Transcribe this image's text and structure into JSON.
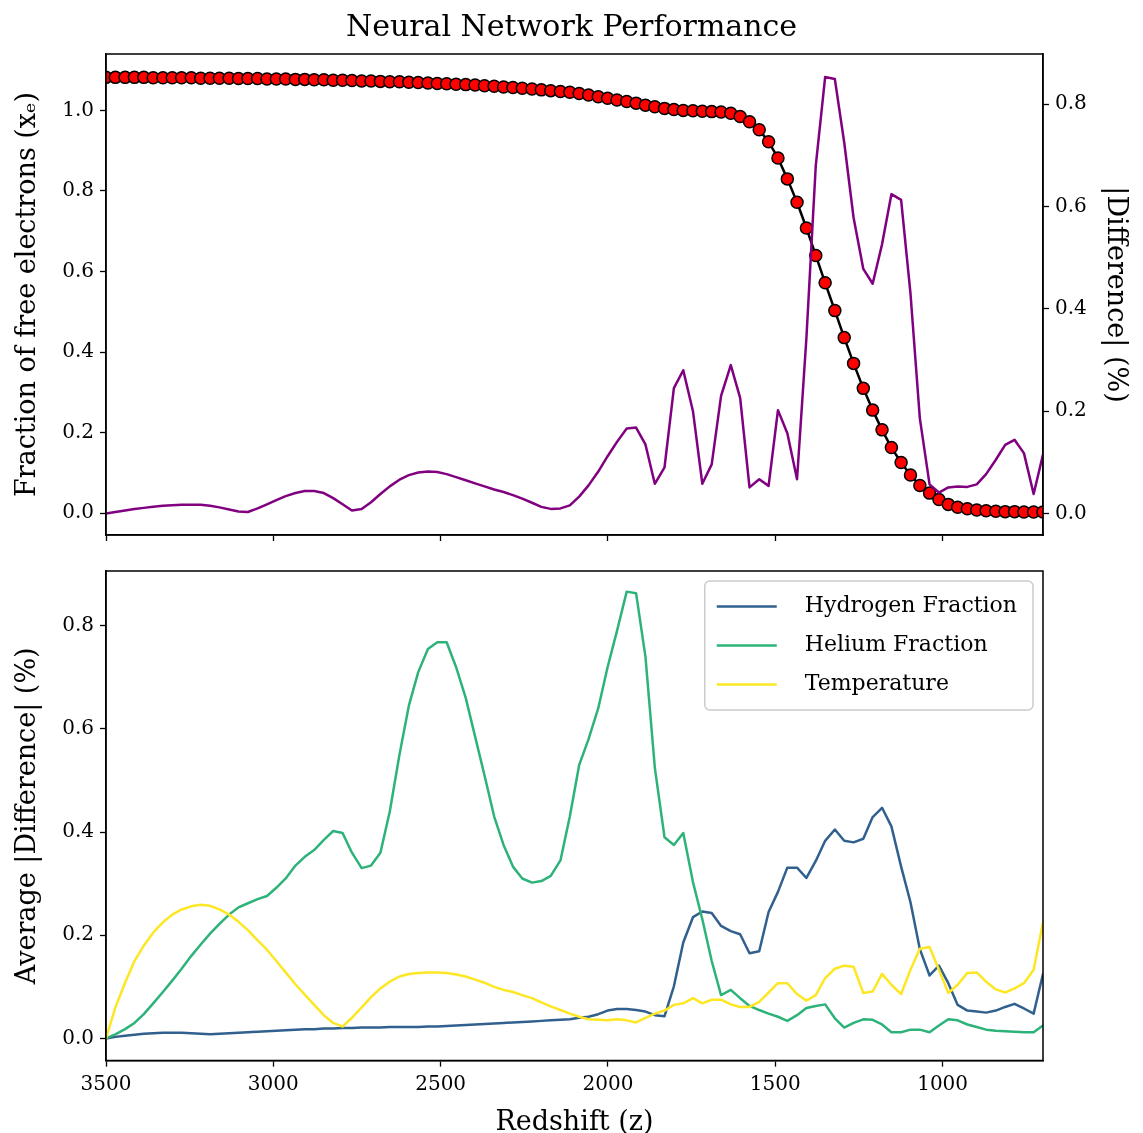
{
  "chart_data": [
    {
      "type": "line",
      "title": "Neural Network Performance",
      "ylabel": "Fraction of free electrons (xₑ)",
      "y2label": "|Difference| (%)",
      "x": [
        3500,
        3472,
        3443,
        3415,
        3387,
        3359,
        3330,
        3302,
        3274,
        3245,
        3217,
        3189,
        3161,
        3132,
        3104,
        3076,
        3047,
        3019,
        2991,
        2963,
        2934,
        2906,
        2878,
        2849,
        2821,
        2793,
        2765,
        2736,
        2708,
        2680,
        2652,
        2623,
        2595,
        2567,
        2538,
        2510,
        2482,
        2454,
        2425,
        2397,
        2369,
        2340,
        2312,
        2284,
        2256,
        2227,
        2199,
        2171,
        2142,
        2114,
        2086,
        2058,
        2029,
        2001,
        1973,
        1944,
        1916,
        1888,
        1860,
        1831,
        1803,
        1775,
        1746,
        1718,
        1690,
        1662,
        1633,
        1605,
        1577,
        1548,
        1520,
        1492,
        1464,
        1435,
        1407,
        1379,
        1351,
        1322,
        1294,
        1266,
        1237,
        1209,
        1181,
        1153,
        1124,
        1096,
        1068,
        1039,
        1011,
        983,
        955,
        926,
        898,
        870,
        841,
        813,
        785,
        757,
        728,
        700
      ],
      "series": [
        {
          "type": "line",
          "color": "#000000",
          "values": [
            1.082,
            1.082,
            1.082,
            1.082,
            1.082,
            1.081,
            1.081,
            1.081,
            1.081,
            1.081,
            1.08,
            1.08,
            1.08,
            1.08,
            1.079,
            1.079,
            1.079,
            1.078,
            1.078,
            1.078,
            1.077,
            1.077,
            1.076,
            1.076,
            1.075,
            1.075,
            1.074,
            1.073,
            1.073,
            1.072,
            1.071,
            1.071,
            1.07,
            1.069,
            1.068,
            1.067,
            1.066,
            1.065,
            1.064,
            1.063,
            1.061,
            1.06,
            1.058,
            1.057,
            1.055,
            1.053,
            1.051,
            1.049,
            1.047,
            1.045,
            1.042,
            1.038,
            1.034,
            1.03,
            1.026,
            1.022,
            1.018,
            1.013,
            1.009,
            1.005,
            1.002,
            1.0,
            0.999,
            0.998,
            0.997,
            0.996,
            0.993,
            0.985,
            0.972,
            0.952,
            0.922,
            0.882,
            0.83,
            0.772,
            0.708,
            0.64,
            0.572,
            0.503,
            0.436,
            0.372,
            0.31,
            0.256,
            0.207,
            0.163,
            0.126,
            0.095,
            0.069,
            0.05,
            0.034,
            0.022,
            0.015,
            0.011,
            0.008,
            0.006,
            0.005,
            0.004,
            0.004,
            0.003,
            0.003,
            0.003
          ]
        },
        {
          "type": "scatter",
          "color": "#ff0000",
          "marker": "circle",
          "values": [
            1.082,
            1.082,
            1.082,
            1.082,
            1.082,
            1.081,
            1.081,
            1.081,
            1.081,
            1.081,
            1.08,
            1.08,
            1.08,
            1.08,
            1.079,
            1.079,
            1.079,
            1.078,
            1.078,
            1.078,
            1.077,
            1.077,
            1.076,
            1.076,
            1.075,
            1.075,
            1.074,
            1.073,
            1.073,
            1.072,
            1.071,
            1.071,
            1.07,
            1.069,
            1.068,
            1.067,
            1.066,
            1.065,
            1.064,
            1.063,
            1.061,
            1.06,
            1.058,
            1.057,
            1.055,
            1.053,
            1.051,
            1.049,
            1.047,
            1.045,
            1.042,
            1.038,
            1.034,
            1.03,
            1.026,
            1.022,
            1.018,
            1.013,
            1.009,
            1.005,
            1.002,
            1.0,
            0.999,
            0.998,
            0.997,
            0.996,
            0.993,
            0.985,
            0.972,
            0.952,
            0.922,
            0.882,
            0.83,
            0.772,
            0.708,
            0.64,
            0.572,
            0.503,
            0.436,
            0.372,
            0.31,
            0.256,
            0.207,
            0.163,
            0.126,
            0.095,
            0.069,
            0.05,
            0.034,
            0.022,
            0.015,
            0.011,
            0.008,
            0.006,
            0.005,
            0.004,
            0.004,
            0.003,
            0.003,
            0.003
          ]
        },
        {
          "type": "line",
          "axis": "y2",
          "color": "#800080",
          "values": [
            0.0,
            0.003,
            0.006,
            0.009,
            0.011,
            0.013,
            0.015,
            0.016,
            0.017,
            0.017,
            0.017,
            0.015,
            0.012,
            0.008,
            0.004,
            0.003,
            0.01,
            0.018,
            0.026,
            0.034,
            0.04,
            0.044,
            0.044,
            0.04,
            0.03,
            0.018,
            0.006,
            0.009,
            0.022,
            0.038,
            0.053,
            0.066,
            0.075,
            0.08,
            0.082,
            0.081,
            0.077,
            0.071,
            0.065,
            0.059,
            0.053,
            0.047,
            0.042,
            0.036,
            0.029,
            0.021,
            0.013,
            0.009,
            0.01,
            0.016,
            0.033,
            0.055,
            0.082,
            0.112,
            0.14,
            0.166,
            0.168,
            0.135,
            0.058,
            0.09,
            0.245,
            0.28,
            0.2,
            0.058,
            0.096,
            0.23,
            0.29,
            0.226,
            0.051,
            0.067,
            0.054,
            0.202,
            0.157,
            0.067,
            0.343,
            0.68,
            0.853,
            0.849,
            0.725,
            0.578,
            0.478,
            0.449,
            0.526,
            0.624,
            0.613,
            0.43,
            0.186,
            0.057,
            0.041,
            0.051,
            0.053,
            0.052,
            0.057,
            0.077,
            0.105,
            0.134,
            0.144,
            0.118,
            0.038,
            0.115
          ]
        }
      ],
      "xlim": [
        3500,
        700
      ],
      "xticks": [
        3500,
        3000,
        2500,
        2000,
        1500,
        1000
      ],
      "ylim": [
        -0.054,
        1.14
      ],
      "yticks": [
        {
          "value": 0,
          "label": "0.0"
        },
        {
          "value": 0.2,
          "label": "0.2"
        },
        {
          "value": 0.4,
          "label": "0.4"
        },
        {
          "value": 0.6,
          "label": "0.6"
        },
        {
          "value": 0.8,
          "label": "0.8"
        },
        {
          "value": 1.0,
          "label": "1.0"
        }
      ],
      "y2lim": [
        -0.042,
        0.898
      ],
      "y2ticks": [
        {
          "value": 0,
          "label": "0.0"
        },
        {
          "value": 0.2,
          "label": "0.2"
        },
        {
          "value": 0.4,
          "label": "0.4"
        },
        {
          "value": 0.6,
          "label": "0.6"
        },
        {
          "value": 0.8,
          "label": "0.8"
        }
      ],
      "tick_labels": "y",
      "grid": false,
      "legend": false
    },
    {
      "type": "line",
      "xlabel": "Redshift (z)",
      "ylabel": "Average |Difference| (%)",
      "x": [
        3500,
        3472,
        3443,
        3415,
        3387,
        3359,
        3330,
        3302,
        3274,
        3245,
        3217,
        3189,
        3161,
        3132,
        3104,
        3076,
        3047,
        3019,
        2991,
        2963,
        2934,
        2906,
        2878,
        2849,
        2821,
        2793,
        2765,
        2736,
        2708,
        2680,
        2652,
        2623,
        2595,
        2567,
        2538,
        2510,
        2482,
        2454,
        2425,
        2397,
        2369,
        2340,
        2312,
        2284,
        2256,
        2227,
        2199,
        2171,
        2142,
        2114,
        2086,
        2058,
        2029,
        2001,
        1973,
        1944,
        1916,
        1888,
        1860,
        1831,
        1803,
        1775,
        1746,
        1718,
        1690,
        1662,
        1633,
        1605,
        1577,
        1548,
        1520,
        1492,
        1464,
        1435,
        1407,
        1379,
        1351,
        1322,
        1294,
        1266,
        1237,
        1209,
        1181,
        1153,
        1124,
        1096,
        1068,
        1039,
        1011,
        983,
        955,
        926,
        898,
        870,
        841,
        813,
        785,
        757,
        728,
        700
      ],
      "series": [
        {
          "name": "Hydrogen Fraction",
          "color": "#31608e",
          "values": [
            0,
            0.003,
            0.005,
            0.007,
            0.009,
            0.01,
            0.011,
            0.011,
            0.011,
            0.01,
            0.009,
            0.008,
            0.009,
            0.01,
            0.011,
            0.012,
            0.013,
            0.014,
            0.015,
            0.016,
            0.017,
            0.018,
            0.018,
            0.019,
            0.019,
            0.02,
            0.02,
            0.021,
            0.021,
            0.021,
            0.022,
            0.022,
            0.022,
            0.022,
            0.023,
            0.023,
            0.024,
            0.025,
            0.026,
            0.027,
            0.028,
            0.029,
            0.03,
            0.031,
            0.032,
            0.033,
            0.034,
            0.035,
            0.036,
            0.037,
            0.04,
            0.042,
            0.047,
            0.054,
            0.057,
            0.057,
            0.055,
            0.052,
            0.045,
            0.043,
            0.101,
            0.186,
            0.235,
            0.246,
            0.243,
            0.218,
            0.208,
            0.202,
            0.165,
            0.169,
            0.245,
            0.284,
            0.331,
            0.331,
            0.311,
            0.344,
            0.383,
            0.405,
            0.383,
            0.38,
            0.387,
            0.429,
            0.447,
            0.411,
            0.333,
            0.264,
            0.173,
            0.122,
            0.141,
            0.107,
            0.065,
            0.054,
            0.052,
            0.05,
            0.054,
            0.061,
            0.067,
            0.058,
            0.048,
            0.125
          ]
        },
        {
          "name": "Helium Fraction",
          "color": "#2db37a",
          "values": [
            0,
            0.008,
            0.018,
            0.03,
            0.047,
            0.068,
            0.09,
            0.112,
            0.135,
            0.16,
            0.182,
            0.203,
            0.222,
            0.24,
            0.254,
            0.262,
            0.27,
            0.276,
            0.292,
            0.31,
            0.335,
            0.352,
            0.365,
            0.385,
            0.402,
            0.398,
            0.36,
            0.33,
            0.335,
            0.36,
            0.44,
            0.55,
            0.645,
            0.71,
            0.755,
            0.768,
            0.768,
            0.72,
            0.66,
            0.585,
            0.51,
            0.43,
            0.375,
            0.333,
            0.31,
            0.302,
            0.305,
            0.315,
            0.345,
            0.43,
            0.53,
            0.58,
            0.64,
            0.72,
            0.79,
            0.866,
            0.863,
            0.74,
            0.525,
            0.39,
            0.375,
            0.398,
            0.303,
            0.231,
            0.15,
            0.084,
            0.094,
            0.078,
            0.063,
            0.055,
            0.048,
            0.042,
            0.034,
            0.045,
            0.059,
            0.063,
            0.066,
            0.039,
            0.021,
            0.03,
            0.037,
            0.036,
            0.027,
            0.012,
            0.012,
            0.017,
            0.017,
            0.012,
            0.025,
            0.037,
            0.035,
            0.027,
            0.022,
            0.017,
            0.015,
            0.014,
            0.013,
            0.012,
            0.012,
            0.025
          ]
        },
        {
          "name": "Temperature",
          "color": "#fde725",
          "values": [
            0,
            0.06,
            0.108,
            0.15,
            0.18,
            0.205,
            0.225,
            0.24,
            0.25,
            0.256,
            0.259,
            0.257,
            0.25,
            0.24,
            0.226,
            0.21,
            0.19,
            0.172,
            0.15,
            0.128,
            0.105,
            0.085,
            0.065,
            0.045,
            0.03,
            0.023,
            0.04,
            0.06,
            0.08,
            0.097,
            0.11,
            0.12,
            0.125,
            0.127,
            0.128,
            0.128,
            0.127,
            0.124,
            0.12,
            0.114,
            0.108,
            0.1,
            0.094,
            0.09,
            0.084,
            0.078,
            0.07,
            0.062,
            0.055,
            0.048,
            0.042,
            0.037,
            0.036,
            0.035,
            0.037,
            0.035,
            0.031,
            0.04,
            0.048,
            0.054,
            0.065,
            0.068,
            0.078,
            0.068,
            0.075,
            0.075,
            0.066,
            0.061,
            0.061,
            0.071,
            0.089,
            0.107,
            0.107,
            0.086,
            0.073,
            0.084,
            0.117,
            0.135,
            0.141,
            0.139,
            0.088,
            0.091,
            0.125,
            0.104,
            0.086,
            0.133,
            0.174,
            0.177,
            0.133,
            0.088,
            0.104,
            0.127,
            0.128,
            0.11,
            0.095,
            0.089,
            0.097,
            0.107,
            0.133,
            0.225
          ]
        }
      ],
      "xlim": [
        3500,
        700
      ],
      "xticks": [
        3500,
        3000,
        2500,
        2000,
        1500,
        1000
      ],
      "ylim": [
        -0.043,
        0.906
      ],
      "yticks": [
        {
          "value": 0,
          "label": "0.0"
        },
        {
          "value": 0.2,
          "label": "0.2"
        },
        {
          "value": 0.4,
          "label": "0.4"
        },
        {
          "value": 0.6,
          "label": "0.6"
        },
        {
          "value": 0.8,
          "label": "0.8"
        }
      ],
      "grid": false,
      "legend": "top right"
    }
  ]
}
